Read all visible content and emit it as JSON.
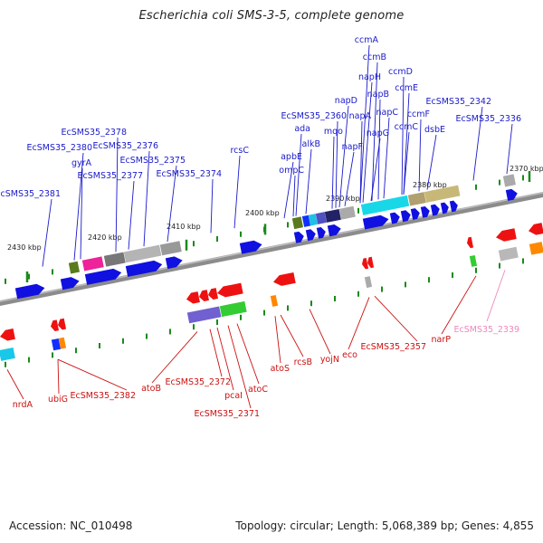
{
  "title": "Escherichia coli SMS-3-5, complete genome",
  "footer": {
    "accession": "Accession: NC_010498",
    "stats": "Topology: circular; Length: 5,068,389 bp; Genes: 4,855"
  },
  "colors": {
    "forward_label": "#1a1acc",
    "reverse_label": "#cc1111",
    "pseudo_label": "#ee88bb",
    "backbone": "#888888",
    "tick": "#1a8a1a"
  },
  "ticks": [
    {
      "label": "2370 kbp"
    },
    {
      "label": "2380 kbp"
    },
    {
      "label": "2390 kbp"
    },
    {
      "label": "2400 kbp"
    },
    {
      "label": "2410 kbp"
    },
    {
      "label": "2420 kbp"
    },
    {
      "label": "2430 kbp"
    }
  ],
  "forward_genes": [
    {
      "name": "ccmA"
    },
    {
      "name": "ccmB"
    },
    {
      "name": "ccmD"
    },
    {
      "name": "napH"
    },
    {
      "name": "ccmE"
    },
    {
      "name": "napB"
    },
    {
      "name": "EcSMS35_2342"
    },
    {
      "name": "napC"
    },
    {
      "name": "ccmF"
    },
    {
      "name": "napD"
    },
    {
      "name": "ccmC"
    },
    {
      "name": "napA"
    },
    {
      "name": "dsbE"
    },
    {
      "name": "EcSMS35_2336"
    },
    {
      "name": "EcSMS35_2360"
    },
    {
      "name": "napG"
    },
    {
      "name": "ada"
    },
    {
      "name": "mqo"
    },
    {
      "name": "napF"
    },
    {
      "name": "alkB"
    },
    {
      "name": "ompC"
    },
    {
      "name": "apbE"
    },
    {
      "name": "rcsC"
    },
    {
      "name": "EcSMS35_2378"
    },
    {
      "name": "EcSMS35_2380"
    },
    {
      "name": "EcSMS35_2376"
    },
    {
      "name": "gyrA"
    },
    {
      "name": "EcSMS35_2375"
    },
    {
      "name": "EcSMS35_2377"
    },
    {
      "name": "EcSMS35_2374"
    },
    {
      "name": "EcSMS35_2381"
    }
  ],
  "reverse_genes": [
    {
      "name": "nrdA"
    },
    {
      "name": "ubiG"
    },
    {
      "name": "EcSMS35_2382"
    },
    {
      "name": "atoB"
    },
    {
      "name": "EcSMS35_2372"
    },
    {
      "name": "pcaI"
    },
    {
      "name": "EcSMS35_2371"
    },
    {
      "name": "atoC"
    },
    {
      "name": "atoS"
    },
    {
      "name": "rcsB"
    },
    {
      "name": "yojN"
    },
    {
      "name": "eco"
    },
    {
      "name": "EcSMS35_2357"
    },
    {
      "name": "narP"
    }
  ],
  "pseudo_genes": [
    {
      "name": "EcSMS35_2339"
    }
  ]
}
